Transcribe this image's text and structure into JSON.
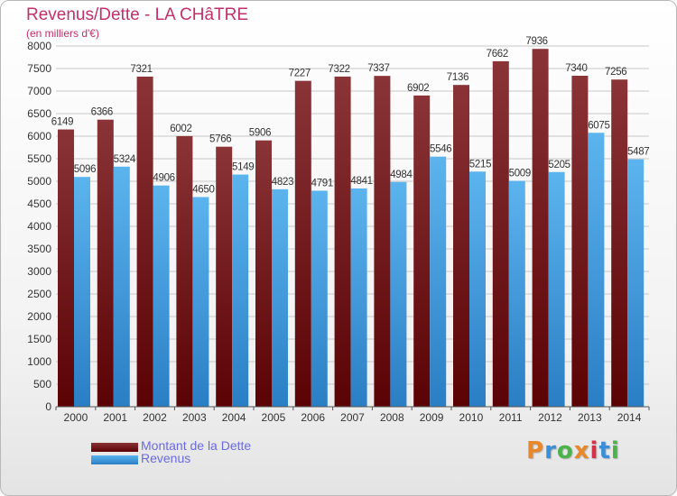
{
  "title": "Revenus/Dette - LA CHâTRE",
  "subtitle": "(en milliers d'€)",
  "brand": {
    "text": "Proxiti",
    "colors": [
      "#e8882a",
      "#3a8fd8",
      "#4cb24c",
      "#e8882a",
      "#d9304a",
      "#3a8fd8",
      "#4cb24c"
    ]
  },
  "legend": {
    "position": "bottom-left",
    "items": [
      {
        "label": "Montant de la Dette",
        "color": "#7a1a1e"
      },
      {
        "label": "Revenus",
        "color": "#3f9fe0"
      }
    ]
  },
  "chart_data": {
    "type": "bar",
    "title": "Revenus/Dette - LA CHâTRE",
    "ylabel": "(en milliers d'€)",
    "xlabel": "",
    "ylim": [
      0,
      8000
    ],
    "yticks": [
      0,
      500,
      1000,
      1500,
      2000,
      2500,
      3000,
      3500,
      4000,
      4500,
      5000,
      5500,
      6000,
      6500,
      7000,
      7500,
      8000
    ],
    "grid": true,
    "categories": [
      "2000",
      "2001",
      "2002",
      "2003",
      "2004",
      "2005",
      "2006",
      "2007",
      "2008",
      "2009",
      "2010",
      "2011",
      "2012",
      "2013",
      "2014"
    ],
    "series": [
      {
        "name": "Montant de la Dette",
        "color": "#7a1a1e",
        "values": [
          6149,
          6366,
          7321,
          6002,
          5766,
          5906,
          7227,
          7322,
          7337,
          6902,
          7136,
          7662,
          7936,
          7340,
          7256
        ]
      },
      {
        "name": "Revenus",
        "color": "#3f9fe0",
        "values": [
          5096,
          5324,
          4906,
          4650,
          5149,
          4823,
          4791,
          4841,
          4984,
          5546,
          5215,
          5009,
          5205,
          6075,
          5487
        ]
      }
    ]
  }
}
